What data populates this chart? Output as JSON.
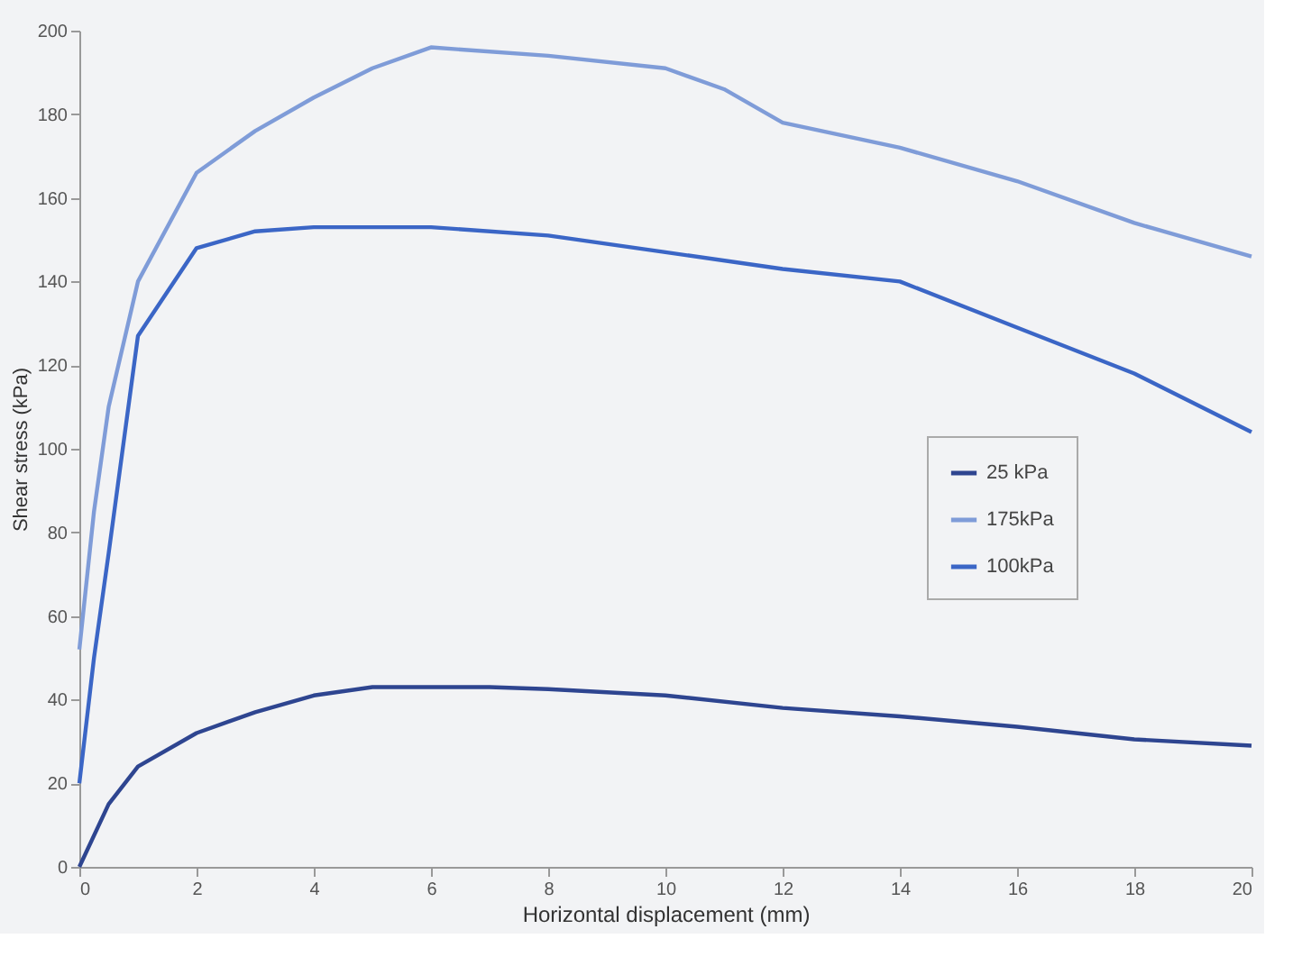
{
  "chart_data": {
    "type": "line",
    "xlabel": "Horizontal displacement (mm)",
    "ylabel": "Shear stress (kPa)",
    "xlim": [
      0,
      20
    ],
    "xticks": [
      0,
      2,
      4,
      6,
      8,
      10,
      12,
      14,
      16,
      18,
      20
    ],
    "ylim": [
      0,
      200
    ],
    "yticks": [
      0,
      20,
      40,
      60,
      80,
      100,
      120,
      140,
      160,
      180,
      200
    ],
    "grid": false,
    "legend": "right",
    "marker": "none",
    "line_style": "solid",
    "series": [
      {
        "name": "25 kPa",
        "color": "#2e4590",
        "x": [
          0,
          0.5,
          1,
          2,
          3,
          4,
          5,
          6,
          7,
          8,
          10,
          12,
          14,
          16,
          18,
          20
        ],
        "values": [
          0,
          15,
          24,
          32,
          37,
          41,
          43,
          43,
          43,
          42.5,
          41,
          38,
          36,
          33.5,
          30.5,
          29
        ]
      },
      {
        "name": "175kPa",
        "color": "#7f9cd8",
        "x": [
          0,
          0.25,
          0.5,
          1,
          2,
          3,
          4,
          5,
          6,
          8,
          10,
          11,
          12,
          14,
          16,
          18,
          20
        ],
        "values": [
          52,
          85,
          110,
          140,
          166,
          176,
          184,
          191,
          196,
          194,
          191,
          186,
          178,
          172,
          164,
          154,
          146
        ]
      },
      {
        "name": "100kPa",
        "color": "#3b66c6",
        "x": [
          0,
          0.25,
          0.5,
          1,
          2,
          3,
          4,
          6,
          8,
          10,
          12,
          14,
          16,
          18,
          20
        ],
        "values": [
          20,
          50,
          75,
          127,
          148,
          152,
          153,
          153,
          151,
          147,
          143,
          140,
          129,
          118,
          104
        ]
      }
    ]
  }
}
